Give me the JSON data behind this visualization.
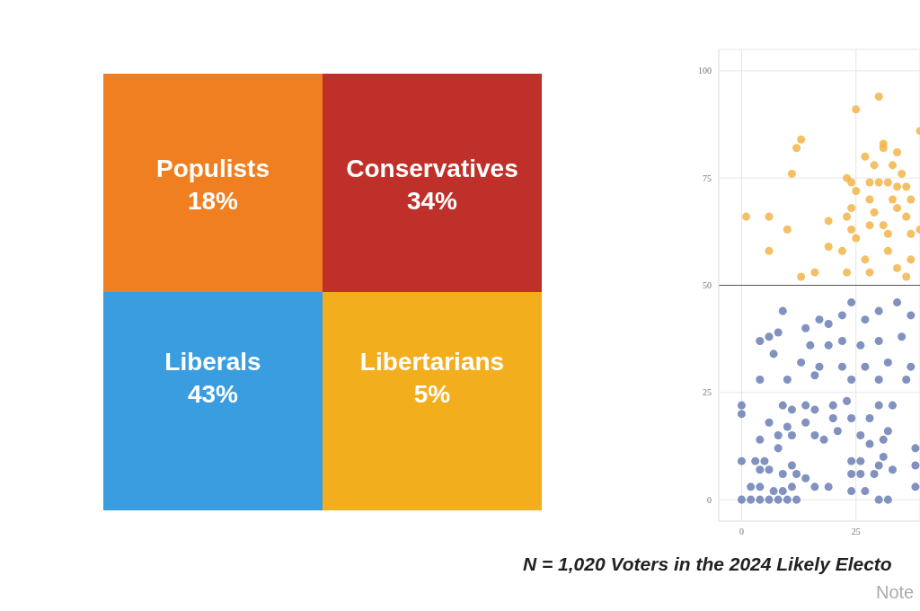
{
  "chart_data": [
    {
      "type": "other",
      "categories": [
        "Populists",
        "Conservatives",
        "Liberals",
        "Libertarians"
      ],
      "values": [
        18,
        34,
        43,
        5
      ],
      "value_labels": [
        "18%",
        "34%",
        "43%",
        "5%"
      ],
      "colors": [
        "#f07f22",
        "#c0302a",
        "#3a9de0",
        "#f2ae1c"
      ]
    },
    {
      "type": "scatter",
      "marker": "circle",
      "legend": false,
      "grid": true,
      "xlim": [
        -5,
        39
      ],
      "xticks": [
        0,
        25
      ],
      "ylim": [
        -5,
        105
      ],
      "yticks": [
        0,
        25,
        50,
        75,
        100
      ],
      "ref_lines": [
        {
          "axis": "y",
          "value": 50,
          "color": "#555555"
        }
      ],
      "annotations": [
        "N = 1,020 Voters in the 2024 Likely Electo",
        "Note"
      ],
      "series": [
        {
          "color": "#f2b54a",
          "x": [
            1,
            6,
            10,
            11,
            12,
            13,
            25,
            30,
            39,
            31,
            31,
            34,
            27,
            29,
            33,
            23,
            24,
            25,
            28,
            30,
            32,
            34,
            35,
            36,
            28,
            33,
            37,
            24,
            23,
            29,
            34,
            36,
            19,
            24,
            28,
            31,
            32,
            37,
            25,
            39,
            6,
            19,
            22,
            16,
            13,
            23,
            28,
            34,
            36,
            27,
            32,
            37
          ],
          "values": [
            66,
            66,
            63,
            76,
            82,
            84,
            91,
            94,
            86,
            83,
            82,
            81,
            80,
            78,
            78,
            75,
            74,
            72,
            74,
            74,
            74,
            73,
            76,
            73,
            70,
            70,
            70,
            68,
            66,
            67,
            68,
            66,
            65,
            63,
            64,
            64,
            62,
            62,
            61,
            63,
            58,
            59,
            58,
            53,
            52,
            53,
            53,
            54,
            52,
            56,
            58,
            56
          ]
        },
        {
          "color": "#6b7fb5",
          "x": [
            9,
            4,
            6,
            8,
            14,
            17,
            19,
            22,
            24,
            27,
            30,
            34,
            37,
            15,
            19,
            22,
            26,
            30,
            35,
            7,
            13,
            17,
            22,
            27,
            32,
            37,
            4,
            10,
            16,
            24,
            30,
            36,
            0,
            0,
            9,
            11,
            14,
            16,
            20,
            20,
            23,
            6,
            10,
            14,
            24,
            28,
            30,
            33,
            32,
            4,
            8,
            8,
            11,
            16,
            18,
            21,
            26,
            28,
            31,
            38,
            0,
            3,
            5,
            4,
            6,
            11,
            9,
            12,
            14,
            24,
            26,
            24,
            26,
            29,
            30,
            31,
            33,
            38,
            2,
            4,
            7,
            9,
            11,
            16,
            19,
            24,
            27,
            38,
            0,
            2,
            4,
            6,
            8,
            10,
            12,
            30,
            32
          ],
          "values": [
            44,
            37,
            38,
            39,
            40,
            42,
            41,
            43,
            46,
            42,
            44,
            46,
            43,
            36,
            36,
            37,
            36,
            37,
            38,
            34,
            32,
            31,
            31,
            31,
            32,
            31,
            28,
            28,
            29,
            28,
            28,
            28,
            22,
            20,
            22,
            21,
            22,
            21,
            22,
            19,
            23,
            18,
            17,
            18,
            19,
            19,
            22,
            22,
            16,
            14,
            15,
            12,
            15,
            15,
            14,
            16,
            15,
            13,
            14,
            12,
            9,
            9,
            9,
            7,
            7,
            8,
            6,
            6,
            5,
            9,
            9,
            6,
            6,
            6,
            8,
            10,
            7,
            8,
            3,
            3,
            2,
            2,
            3,
            3,
            3,
            2,
            2,
            3,
            0,
            0,
            0,
            0,
            0,
            0,
            0,
            0,
            0
          ]
        }
      ]
    }
  ]
}
